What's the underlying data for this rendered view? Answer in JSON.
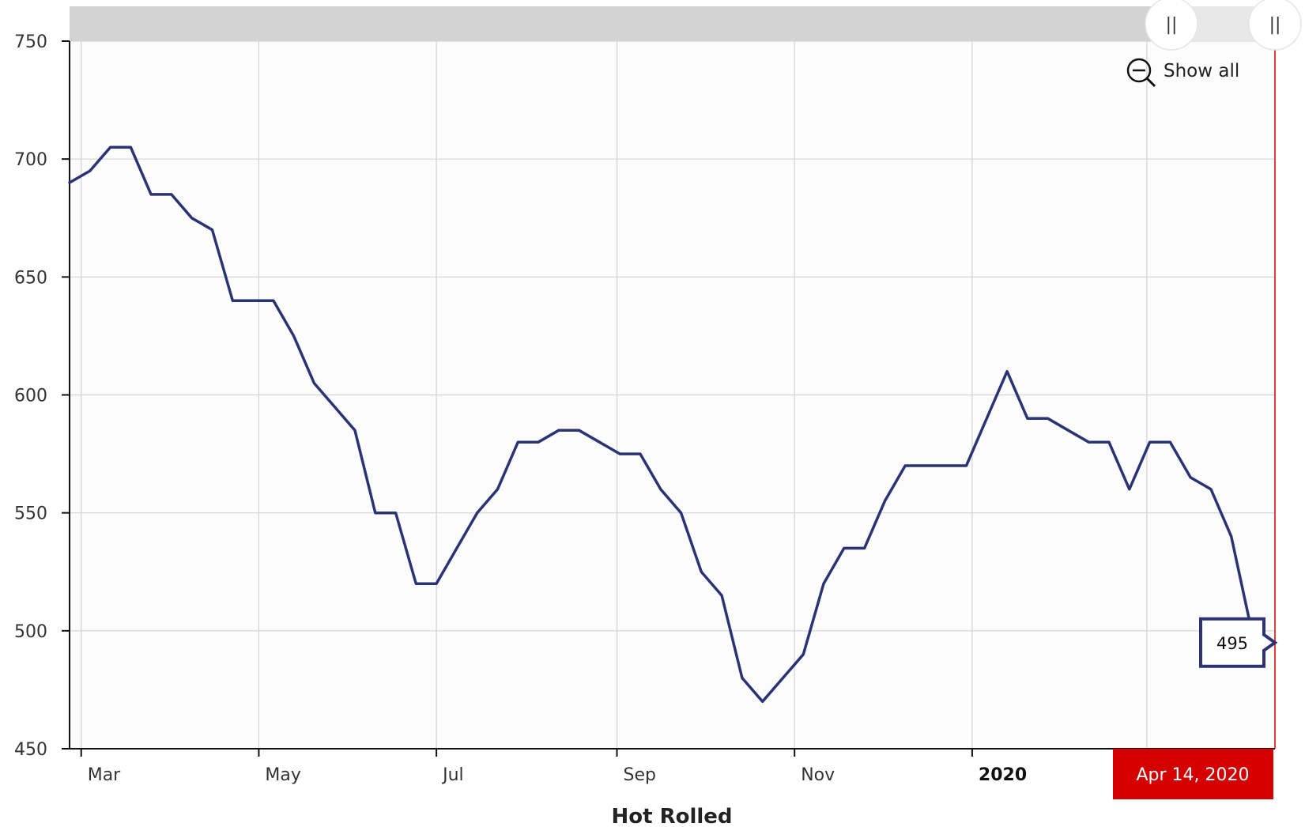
{
  "chart_data": {
    "type": "line",
    "title": "",
    "xlabel": "Hot Rolled",
    "ylabel": "",
    "ylim": [
      450,
      750
    ],
    "yticks": [
      450,
      500,
      550,
      600,
      650,
      700,
      750
    ],
    "xlim": [
      "2019-02-25",
      "2020-04-14"
    ],
    "xticks": [
      {
        "date": "2019-03-01",
        "label": "Mar",
        "bold": false
      },
      {
        "date": "2019-05-01",
        "label": "May",
        "bold": false
      },
      {
        "date": "2019-07-01",
        "label": "Jul",
        "bold": false
      },
      {
        "date": "2019-09-01",
        "label": "Sep",
        "bold": false
      },
      {
        "date": "2019-11-01",
        "label": "Nov",
        "bold": false
      },
      {
        "date": "2020-01-01",
        "label": "2020",
        "bold": true
      },
      {
        "date": "2020-03-01",
        "label": "",
        "bold": false
      }
    ],
    "grid": true,
    "series": [
      {
        "name": "",
        "color": "#2b3375",
        "points": [
          [
            "2019-02-25",
            690
          ],
          [
            "2019-03-04",
            695
          ],
          [
            "2019-03-11",
            705
          ],
          [
            "2019-03-18",
            705
          ],
          [
            "2019-03-25",
            685
          ],
          [
            "2019-04-01",
            685
          ],
          [
            "2019-04-08",
            675
          ],
          [
            "2019-04-15",
            670
          ],
          [
            "2019-04-22",
            640
          ],
          [
            "2019-04-29",
            640
          ],
          [
            "2019-05-06",
            640
          ],
          [
            "2019-05-13",
            625
          ],
          [
            "2019-05-20",
            605
          ],
          [
            "2019-05-27",
            595
          ],
          [
            "2019-06-03",
            585
          ],
          [
            "2019-06-10",
            550
          ],
          [
            "2019-06-17",
            550
          ],
          [
            "2019-06-24",
            520
          ],
          [
            "2019-07-01",
            520
          ],
          [
            "2019-07-08",
            535
          ],
          [
            "2019-07-15",
            550
          ],
          [
            "2019-07-22",
            560
          ],
          [
            "2019-07-29",
            580
          ],
          [
            "2019-08-05",
            580
          ],
          [
            "2019-08-12",
            585
          ],
          [
            "2019-08-19",
            585
          ],
          [
            "2019-08-26",
            580
          ],
          [
            "2019-09-02",
            575
          ],
          [
            "2019-09-09",
            575
          ],
          [
            "2019-09-16",
            560
          ],
          [
            "2019-09-23",
            550
          ],
          [
            "2019-09-30",
            525
          ],
          [
            "2019-10-07",
            515
          ],
          [
            "2019-10-14",
            480
          ],
          [
            "2019-10-21",
            470
          ],
          [
            "2019-10-28",
            480
          ],
          [
            "2019-11-04",
            490
          ],
          [
            "2019-11-11",
            520
          ],
          [
            "2019-11-18",
            535
          ],
          [
            "2019-11-25",
            535
          ],
          [
            "2019-12-02",
            555
          ],
          [
            "2019-12-09",
            570
          ],
          [
            "2019-12-16",
            570
          ],
          [
            "2019-12-23",
            570
          ],
          [
            "2019-12-30",
            570
          ],
          [
            "2020-01-06",
            590
          ],
          [
            "2020-01-13",
            610
          ],
          [
            "2020-01-20",
            590
          ],
          [
            "2020-01-27",
            590
          ],
          [
            "2020-02-03",
            585
          ],
          [
            "2020-02-10",
            580
          ],
          [
            "2020-02-17",
            580
          ],
          [
            "2020-02-24",
            560
          ],
          [
            "2020-03-02",
            580
          ],
          [
            "2020-03-09",
            580
          ],
          [
            "2020-03-16",
            565
          ],
          [
            "2020-03-23",
            560
          ],
          [
            "2020-03-30",
            540
          ],
          [
            "2020-04-06",
            500
          ],
          [
            "2020-04-14",
            495
          ]
        ]
      }
    ],
    "cursor": {
      "date": "2020-04-14",
      "label": "Apr 14, 2020",
      "value": 495,
      "value_label": "495"
    }
  },
  "colors": {
    "line": "#2b3375",
    "cursor": "#d40000",
    "grid": "#d3d3d3",
    "plot_bg": "#fcfcfc",
    "scrollbar": "#d3d3d3"
  },
  "controls": {
    "show_all_label": "Show all",
    "zoom_out_icon": "zoom-out-icon",
    "grip_left_icon": "grip-icon",
    "grip_right_icon": "grip-icon",
    "grip_glyph": "||"
  }
}
